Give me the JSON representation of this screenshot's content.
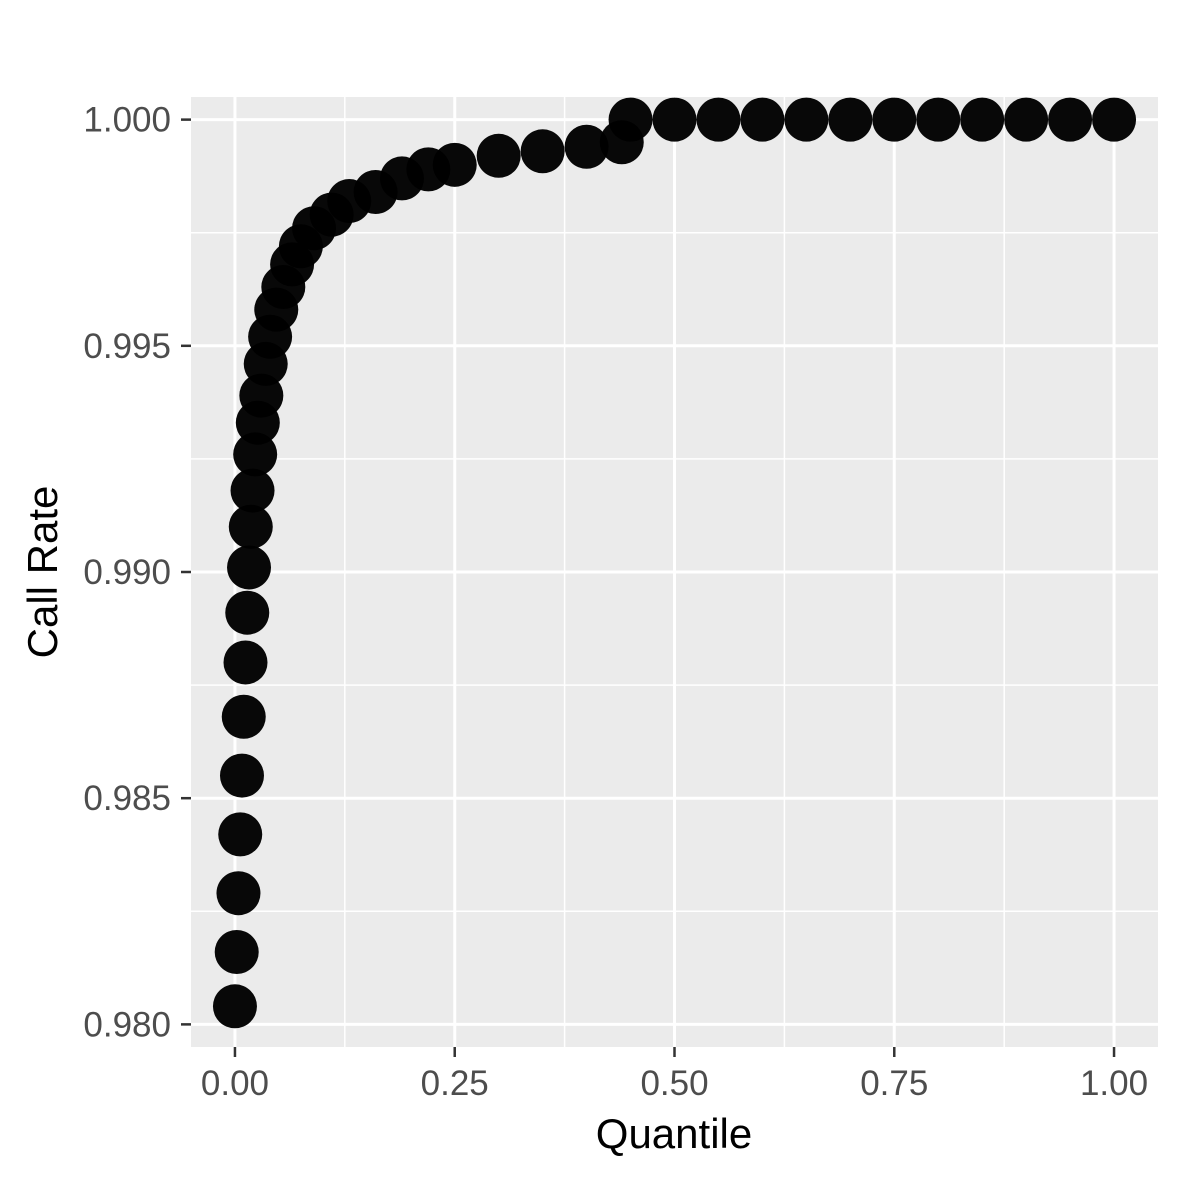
{
  "chart_data": {
    "type": "scatter",
    "title": "",
    "xlabel": "Quantile",
    "ylabel": "Call Rate",
    "xlim": [
      -0.05,
      1.05
    ],
    "ylim": [
      0.9795,
      1.0005
    ],
    "x_ticks": [
      0.0,
      0.25,
      0.5,
      0.75,
      1.0
    ],
    "x_tick_labels": [
      "0.00",
      "0.25",
      "0.50",
      "0.75",
      "1.00"
    ],
    "y_ticks": [
      0.98,
      0.985,
      0.99,
      0.995,
      1.0
    ],
    "y_tick_labels": [
      "0.980",
      "0.985",
      "0.990",
      "0.995",
      "1.000"
    ],
    "grid": true,
    "panel_background": "#EBEBEB",
    "grid_color": "#FFFFFF",
    "point_color": "#000000",
    "series": [
      {
        "x": [
          0.0,
          0.002,
          0.004,
          0.006,
          0.008,
          0.01,
          0.012,
          0.014,
          0.016,
          0.018,
          0.02,
          0.023,
          0.026,
          0.03,
          0.035,
          0.04,
          0.047,
          0.055,
          0.065,
          0.075,
          0.09,
          0.11,
          0.13,
          0.16,
          0.19,
          0.22,
          0.25,
          0.3,
          0.35,
          0.4,
          0.44,
          0.45,
          0.5,
          0.55,
          0.6,
          0.65,
          0.7,
          0.75,
          0.8,
          0.85,
          0.9,
          0.95,
          1.0
        ],
        "y": [
          0.9804,
          0.9816,
          0.9829,
          0.9842,
          0.9855,
          0.9868,
          0.988,
          0.9891,
          0.9901,
          0.991,
          0.9918,
          0.9926,
          0.9933,
          0.9939,
          0.9946,
          0.9952,
          0.9958,
          0.9963,
          0.9968,
          0.9972,
          0.9976,
          0.9979,
          0.9982,
          0.9984,
          0.9987,
          0.9989,
          0.999,
          0.9992,
          0.9993,
          0.9994,
          0.9995,
          1.0,
          1.0,
          1.0,
          1.0,
          1.0,
          1.0,
          1.0,
          1.0,
          1.0,
          1.0,
          1.0,
          1.0
        ]
      }
    ]
  }
}
